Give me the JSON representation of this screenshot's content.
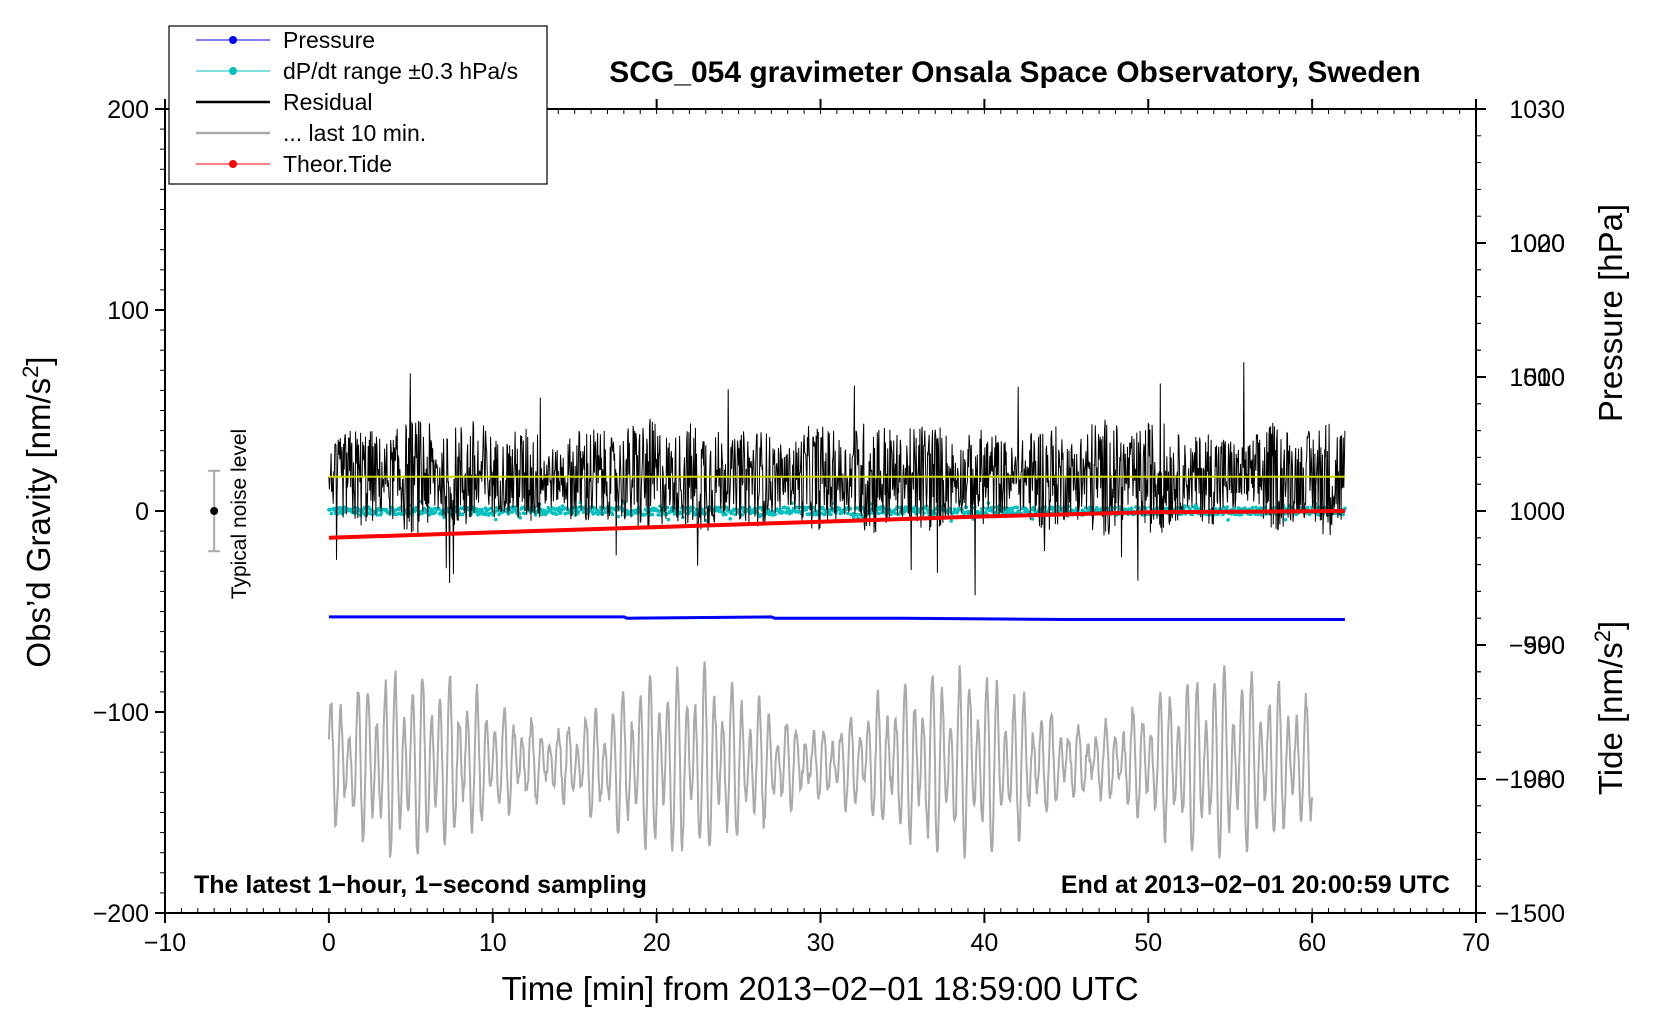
{
  "chart_data": {
    "type": "line",
    "title": "SCG_054 gravimeter Onsala Space Observatory, Sweden",
    "xlabel": "Time [min] from 2013−02−01 18:59:00 UTC",
    "ylabel_left": "Obs’d Gravity [nm/s²]",
    "ylabel_left_main": "Obs’d Gravity [nm/s",
    "ylabel_left_sup": "2",
    "ylabel_left_end": "]",
    "ylabel_pressure": "Pressure [hPa]",
    "ylabel_tide_main": "Tide [nm/s",
    "ylabel_tide_sup": "2",
    "ylabel_tide_end": "]",
    "xlim": [
      -10,
      70
    ],
    "ylim_left": [
      -200,
      200
    ],
    "ylim_pressure": [
      970,
      1030
    ],
    "ylim_tide": [
      -1500,
      1500
    ],
    "x_ticks": [
      {
        "v": -10,
        "label": "−10"
      },
      {
        "v": 0,
        "label": "0"
      },
      {
        "v": 10,
        "label": "10"
      },
      {
        "v": 20,
        "label": "20"
      },
      {
        "v": 30,
        "label": "30"
      },
      {
        "v": 40,
        "label": "40"
      },
      {
        "v": 50,
        "label": "50"
      },
      {
        "v": 60,
        "label": "60"
      },
      {
        "v": 70,
        "label": "70"
      }
    ],
    "y_ticks_left": [
      {
        "v": 200,
        "label": "200"
      },
      {
        "v": 100,
        "label": "100"
      },
      {
        "v": 0,
        "label": "0"
      },
      {
        "v": -100,
        "label": "−100"
      },
      {
        "v": -200,
        "label": "−200"
      }
    ],
    "y_ticks_pressure": [
      {
        "v": 1030,
        "label": "1030"
      },
      {
        "v": 1020,
        "label": "1020"
      },
      {
        "v": 1010,
        "label": "1010"
      },
      {
        "v": 1000,
        "label": "1000"
      },
      {
        "v": 990,
        "label": "990"
      },
      {
        "v": 980,
        "label": "980"
      }
    ],
    "y_ticks_tide": [
      {
        "v": 1000,
        "label": "1000"
      },
      {
        "v": 500,
        "label": "500"
      },
      {
        "v": 0,
        "label": "0"
      },
      {
        "v": -500,
        "label": "−500"
      },
      {
        "v": -1000,
        "label": "−1000"
      },
      {
        "v": -1500,
        "label": "−1500"
      }
    ],
    "legend_position": "top-left",
    "legend": [
      {
        "label": "Pressure",
        "color": "#0000ff",
        "style": "line-dot"
      },
      {
        "label": "dP/dt range ±0.3 hPa/s",
        "color": "#00c0c0",
        "style": "line-dot"
      },
      {
        "label": "Residual",
        "color": "#000000",
        "style": "line"
      },
      {
        "label": "... last 10 min.",
        "color": "#aaaaaa",
        "style": "line"
      },
      {
        "label": "Theor.Tide",
        "color": "#ff0000",
        "style": "line-dot"
      }
    ],
    "annotations": {
      "bottom_left": "The latest 1−hour, 1−second sampling",
      "bottom_right": "End at 2013−02−01 20:00:59 UTC",
      "noise_label": "Typical noise level"
    },
    "noise_bar": {
      "x": -7,
      "center": 0,
      "low": -20,
      "high": 20
    },
    "series": [
      {
        "name": "Pressure",
        "axis": "pressure",
        "color": "#0000ff",
        "x": [
          0,
          10,
          18,
          18.2,
          27,
          27.2,
          35,
          45,
          55,
          62
        ],
        "values": [
          992.1,
          992.1,
          992.1,
          992.0,
          992.1,
          992.0,
          992.0,
          991.9,
          991.9,
          991.9
        ]
      },
      {
        "name": "dP/dt range ±0.3 hPa/s",
        "axis": "pressure",
        "color": "#00c0c0",
        "x_start": 0,
        "x_end": 62,
        "center": 1000,
        "spread": 0.6
      },
      {
        "name": "Residual",
        "axis": "left",
        "color": "#000000",
        "x_start": 0,
        "x_end": 62,
        "center": 17,
        "min": -43,
        "max": 77
      },
      {
        "name": "Running mean",
        "axis": "left",
        "color": "#d4d400",
        "x": [
          0,
          10,
          20,
          30,
          40,
          50,
          62
        ],
        "values": [
          17,
          17,
          17,
          17,
          17,
          17,
          17
        ]
      },
      {
        "name": "... last 10 min.",
        "axis": "left",
        "color": "#aaaaaa",
        "x_start": 0,
        "x_end": 60,
        "center": -125,
        "min": -180,
        "max": -65
      },
      {
        "name": "Theor.Tide",
        "axis": "tide",
        "color": "#ff0000",
        "x": [
          0,
          10,
          20,
          30,
          40,
          50,
          62
        ],
        "values": [
          -100,
          -80,
          -60,
          -40,
          -20,
          -5,
          0
        ]
      }
    ]
  }
}
